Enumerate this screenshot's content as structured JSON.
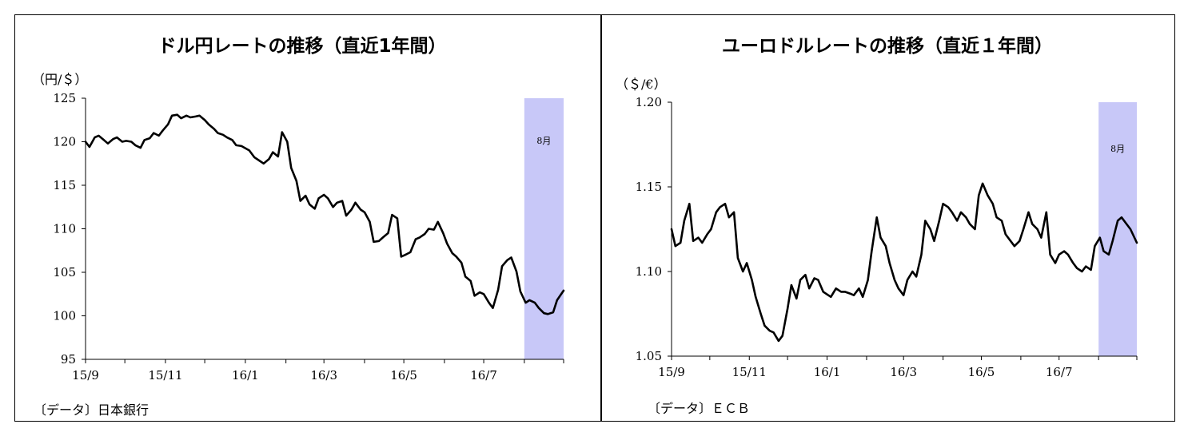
{
  "chart_data": [
    {
      "type": "line",
      "title": "ドル円レートの推移（直近1年間）",
      "unit_label": "（円/＄）",
      "source": "〔データ〕日本銀行",
      "xlabel": "",
      "ylabel": "",
      "ylim": [
        95,
        125
      ],
      "y_ticks": [
        "95",
        "100",
        "105",
        "110",
        "115",
        "120",
        "125"
      ],
      "x_tick_labels": [
        "15/9",
        "15/11",
        "16/1",
        "16/3",
        "16/5",
        "16/7"
      ],
      "x_range": [
        "2015-09-01",
        "2016-08-31"
      ],
      "highlight": {
        "label": "8月",
        "from": "2016-08-01",
        "to": "2016-08-31",
        "color": "#c8c8f8"
      },
      "grid": false,
      "series": [
        {
          "x": [
            "2015-09-01",
            "2015-09-04",
            "2015-09-08",
            "2015-09-11",
            "2015-09-15",
            "2015-09-18",
            "2015-09-22",
            "2015-09-25",
            "2015-09-29",
            "2015-10-02",
            "2015-10-06",
            "2015-10-09",
            "2015-10-13",
            "2015-10-16",
            "2015-10-20",
            "2015-10-23",
            "2015-10-27",
            "2015-10-30",
            "2015-11-03",
            "2015-11-06",
            "2015-11-10",
            "2015-11-13",
            "2015-11-17",
            "2015-11-20",
            "2015-11-24",
            "2015-11-27",
            "2015-12-01",
            "2015-12-04",
            "2015-12-08",
            "2015-12-11",
            "2015-12-15",
            "2015-12-18",
            "2015-12-22",
            "2015-12-25",
            "2015-12-29",
            "2016-01-04",
            "2016-01-08",
            "2016-01-12",
            "2016-01-15",
            "2016-01-19",
            "2016-01-22",
            "2016-01-26",
            "2016-01-29",
            "2016-02-02",
            "2016-02-05",
            "2016-02-09",
            "2016-02-12",
            "2016-02-16",
            "2016-02-19",
            "2016-02-23",
            "2016-02-26",
            "2016-03-01",
            "2016-03-04",
            "2016-03-08",
            "2016-03-11",
            "2016-03-15",
            "2016-03-18",
            "2016-03-22",
            "2016-03-25",
            "2016-03-29",
            "2016-04-01",
            "2016-04-05",
            "2016-04-08",
            "2016-04-12",
            "2016-04-15",
            "2016-04-19",
            "2016-04-22",
            "2016-04-26",
            "2016-04-29",
            "2016-05-02",
            "2016-05-06",
            "2016-05-10",
            "2016-05-13",
            "2016-05-17",
            "2016-05-20",
            "2016-05-24",
            "2016-05-27",
            "2016-05-31",
            "2016-06-03",
            "2016-06-07",
            "2016-06-10",
            "2016-06-14",
            "2016-06-17",
            "2016-06-21",
            "2016-06-24",
            "2016-06-28",
            "2016-07-01",
            "2016-07-05",
            "2016-07-08",
            "2016-07-12",
            "2016-07-15",
            "2016-07-19",
            "2016-07-22",
            "2016-07-26",
            "2016-07-29",
            "2016-08-02",
            "2016-08-05",
            "2016-08-09",
            "2016-08-12",
            "2016-08-16",
            "2016-08-19",
            "2016-08-23",
            "2016-08-26",
            "2016-08-31"
          ],
          "values": [
            120.0,
            119.4,
            120.5,
            120.7,
            120.2,
            119.8,
            120.3,
            120.5,
            120.0,
            120.1,
            120.0,
            119.6,
            119.3,
            120.2,
            120.4,
            121.0,
            120.7,
            121.3,
            122.0,
            123.0,
            123.1,
            122.7,
            123.0,
            122.8,
            122.9,
            123.0,
            122.5,
            122.0,
            121.5,
            121.0,
            120.8,
            120.5,
            120.2,
            119.6,
            119.5,
            119.0,
            118.2,
            117.8,
            117.5,
            118.0,
            118.8,
            118.3,
            121.1,
            120.0,
            117.0,
            115.5,
            113.2,
            113.8,
            112.8,
            112.3,
            113.5,
            113.9,
            113.5,
            112.5,
            113.0,
            113.2,
            111.5,
            112.2,
            113.0,
            112.2,
            111.9,
            110.8,
            108.5,
            108.6,
            109.0,
            109.5,
            111.6,
            111.2,
            106.8,
            107.0,
            107.3,
            108.8,
            109.0,
            109.4,
            110.0,
            109.9,
            110.8,
            109.5,
            108.3,
            107.2,
            106.8,
            106.1,
            104.5,
            104.0,
            102.3,
            102.7,
            102.5,
            101.5,
            100.9,
            103.0,
            105.7,
            106.4,
            106.7,
            105.1,
            102.8,
            101.5,
            101.8,
            101.5,
            100.9,
            100.3,
            100.2,
            100.4,
            101.8,
            102.9
          ]
        }
      ]
    },
    {
      "type": "line",
      "title": "ユーロドルレートの推移（直近１年間）",
      "unit_label": "（＄/€）",
      "source": "〔データ〕ＥＣＢ",
      "xlabel": "",
      "ylabel": "",
      "ylim": [
        1.05,
        1.2
      ],
      "y_ticks": [
        "1.05",
        "1.10",
        "1.15",
        "1.20"
      ],
      "x_tick_labels": [
        "15/9",
        "15/11",
        "16/1",
        "16/3",
        "16/5",
        "16/7"
      ],
      "x_range": [
        "2015-09-01",
        "2016-08-31"
      ],
      "highlight": {
        "label": "8月",
        "from": "2016-08-01",
        "to": "2016-08-31",
        "color": "#c8c8f8"
      },
      "grid": false,
      "series": [
        {
          "x": [
            "2015-09-01",
            "2015-09-04",
            "2015-09-08",
            "2015-09-11",
            "2015-09-15",
            "2015-09-18",
            "2015-09-22",
            "2015-09-25",
            "2015-09-29",
            "2015-10-02",
            "2015-10-06",
            "2015-10-09",
            "2015-10-13",
            "2015-10-16",
            "2015-10-20",
            "2015-10-23",
            "2015-10-27",
            "2015-10-30",
            "2015-11-03",
            "2015-11-06",
            "2015-11-10",
            "2015-11-13",
            "2015-11-17",
            "2015-11-20",
            "2015-11-24",
            "2015-11-27",
            "2015-12-01",
            "2015-12-04",
            "2015-12-08",
            "2015-12-11",
            "2015-12-15",
            "2015-12-18",
            "2015-12-22",
            "2015-12-25",
            "2015-12-29",
            "2016-01-04",
            "2016-01-08",
            "2016-01-12",
            "2016-01-15",
            "2016-01-19",
            "2016-01-22",
            "2016-01-26",
            "2016-01-29",
            "2016-02-02",
            "2016-02-05",
            "2016-02-09",
            "2016-02-12",
            "2016-02-16",
            "2016-02-19",
            "2016-02-23",
            "2016-02-26",
            "2016-03-01",
            "2016-03-04",
            "2016-03-08",
            "2016-03-11",
            "2016-03-15",
            "2016-03-18",
            "2016-03-22",
            "2016-03-25",
            "2016-03-29",
            "2016-04-01",
            "2016-04-05",
            "2016-04-08",
            "2016-04-12",
            "2016-04-15",
            "2016-04-19",
            "2016-04-22",
            "2016-04-26",
            "2016-04-29",
            "2016-05-02",
            "2016-05-06",
            "2016-05-10",
            "2016-05-13",
            "2016-05-17",
            "2016-05-20",
            "2016-05-24",
            "2016-05-27",
            "2016-05-31",
            "2016-06-03",
            "2016-06-07",
            "2016-06-10",
            "2016-06-14",
            "2016-06-17",
            "2016-06-21",
            "2016-06-24",
            "2016-06-28",
            "2016-07-01",
            "2016-07-05",
            "2016-07-08",
            "2016-07-12",
            "2016-07-15",
            "2016-07-19",
            "2016-07-22",
            "2016-07-26",
            "2016-07-29",
            "2016-08-02",
            "2016-08-05",
            "2016-08-09",
            "2016-08-12",
            "2016-08-16",
            "2016-08-19",
            "2016-08-23",
            "2016-08-26",
            "2016-08-31"
          ],
          "values": [
            1.125,
            1.115,
            1.117,
            1.13,
            1.14,
            1.118,
            1.12,
            1.117,
            1.122,
            1.125,
            1.135,
            1.138,
            1.14,
            1.132,
            1.135,
            1.108,
            1.1,
            1.105,
            1.095,
            1.085,
            1.075,
            1.068,
            1.065,
            1.064,
            1.059,
            1.062,
            1.078,
            1.092,
            1.084,
            1.095,
            1.098,
            1.09,
            1.096,
            1.095,
            1.088,
            1.085,
            1.09,
            1.088,
            1.088,
            1.087,
            1.086,
            1.09,
            1.085,
            1.095,
            1.112,
            1.132,
            1.12,
            1.115,
            1.105,
            1.095,
            1.09,
            1.086,
            1.095,
            1.1,
            1.097,
            1.11,
            1.13,
            1.125,
            1.118,
            1.13,
            1.14,
            1.138,
            1.135,
            1.13,
            1.135,
            1.132,
            1.128,
            1.125,
            1.145,
            1.152,
            1.145,
            1.14,
            1.132,
            1.13,
            1.122,
            1.118,
            1.115,
            1.118,
            1.125,
            1.135,
            1.128,
            1.125,
            1.12,
            1.135,
            1.11,
            1.105,
            1.11,
            1.112,
            1.11,
            1.105,
            1.102,
            1.1,
            1.103,
            1.101,
            1.115,
            1.12,
            1.112,
            1.11,
            1.118,
            1.13,
            1.132,
            1.128,
            1.125,
            1.117
          ]
        }
      ]
    }
  ]
}
